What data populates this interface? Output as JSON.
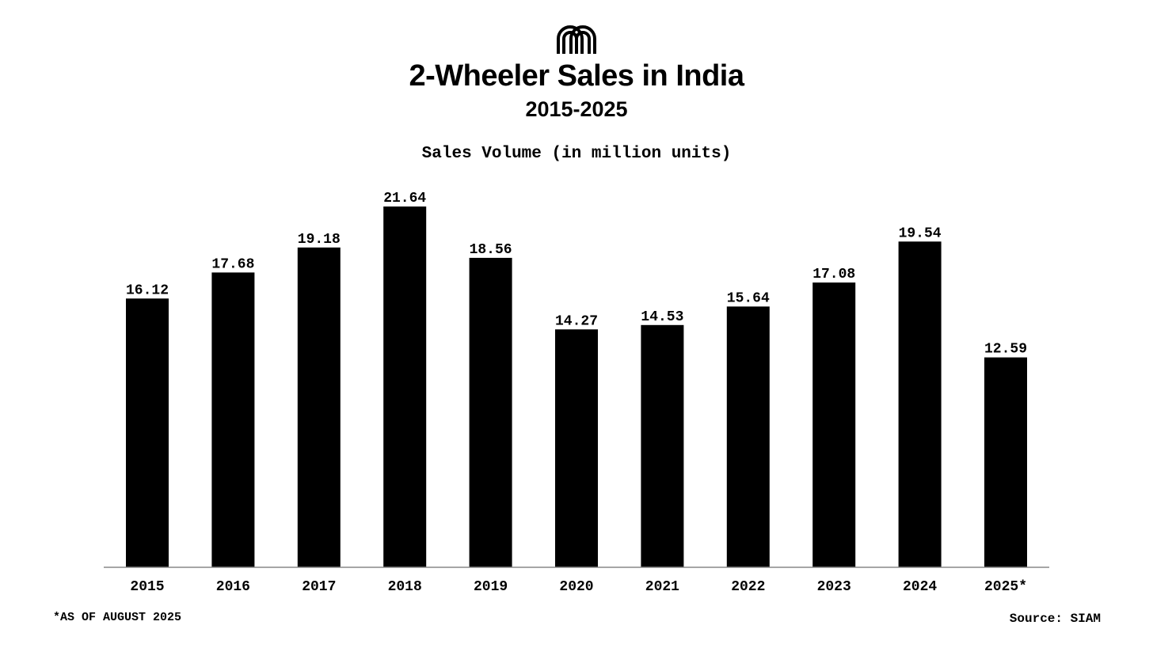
{
  "header": {
    "logo_icon": "arches-logo-icon",
    "title": "2-Wheeler Sales in India",
    "subtitle": "2015-2025"
  },
  "chart_data": {
    "type": "bar",
    "title": "2-Wheeler Sales in India",
    "subtitle": "2015-2025",
    "xlabel": "",
    "ylabel": "Sales Volume (in million units)",
    "categories": [
      "2015",
      "2016",
      "2017",
      "2018",
      "2019",
      "2020",
      "2021",
      "2022",
      "2023",
      "2024",
      "2025*"
    ],
    "values": [
      16.12,
      17.68,
      19.18,
      21.64,
      18.56,
      14.27,
      14.53,
      15.64,
      17.08,
      19.54,
      12.59
    ],
    "value_labels": [
      "16.12",
      "17.68",
      "19.18",
      "21.64",
      "18.56",
      "14.27",
      "14.53",
      "15.64",
      "17.08",
      "19.54",
      "12.59"
    ],
    "ylim": [
      0,
      21.64
    ],
    "grid": false,
    "legend": "none",
    "bar_color": "#000000",
    "axis_color": "#888888"
  },
  "footer": {
    "footnote": "*AS OF AUGUST 2025",
    "source": "Source: SIAM"
  }
}
